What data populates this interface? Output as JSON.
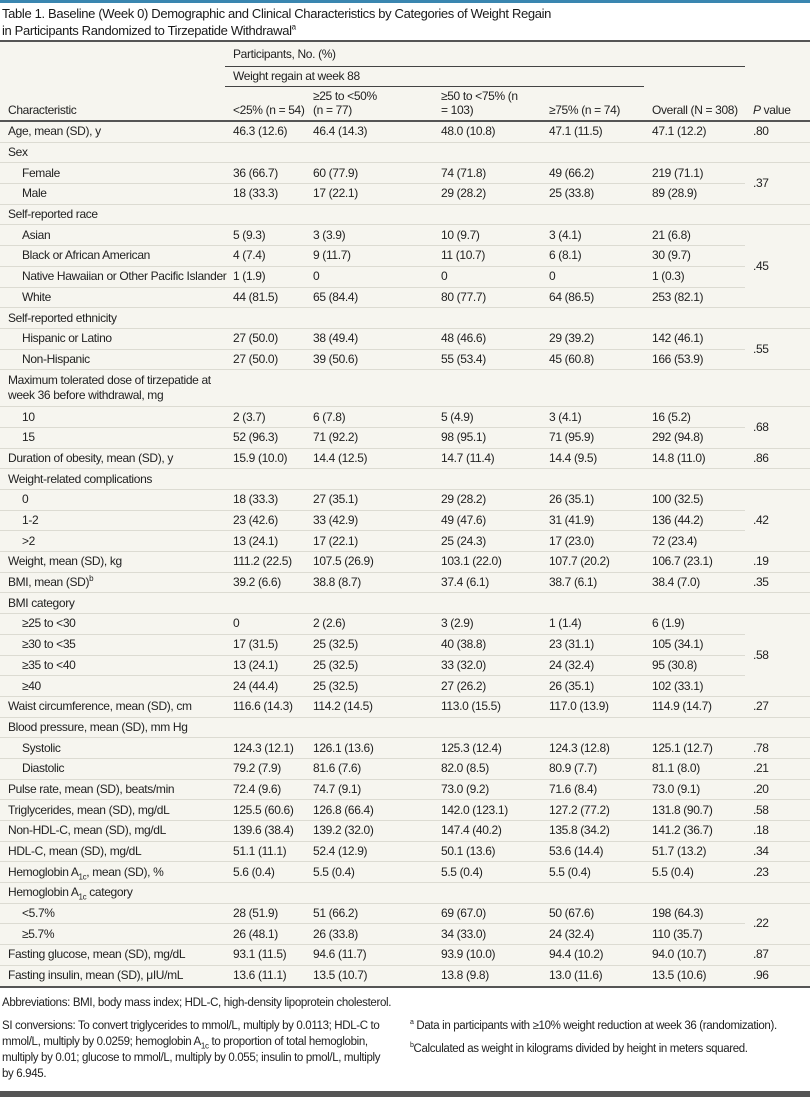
{
  "title": {
    "line1": "Table 1. Baseline (Week 0) Demographic and Clinical Characteristics by Categories of Weight Regain",
    "line2": "in Participants Randomized to Tirzepatide Withdrawal",
    "sup": "a"
  },
  "header": {
    "participants": "Participants, No. (%)",
    "regain": "Weight regain at week 88",
    "columns": [
      "Characteristic",
      "<25% (n = 54)",
      "≥25 to <50% (n = 77)",
      "≥50 to <75% (n = 103)",
      "≥75% (n = 74)",
      "Overall (N = 308)",
      "P value"
    ]
  },
  "rows": [
    {
      "label": "Age, mean (SD), y",
      "values": [
        "46.3 (12.6)",
        "46.4 (14.3)",
        "48.0 (10.8)",
        "47.1 (11.5)",
        "47.1 (12.2)"
      ],
      "p": ".80",
      "span": 1
    },
    {
      "label": "Sex",
      "section": true
    },
    {
      "label": "Female",
      "indent": true,
      "values": [
        "36 (66.7)",
        "60 (77.9)",
        "74 (71.8)",
        "49 (66.2)",
        "219 (71.1)"
      ],
      "p": ".37",
      "span": 2
    },
    {
      "label": "Male",
      "indent": true,
      "values": [
        "18 (33.3)",
        "17 (22.1)",
        "29 (28.2)",
        "25 (33.8)",
        "89 (28.9)"
      ]
    },
    {
      "label": "Self-reported race",
      "section": true
    },
    {
      "label": "Asian",
      "indent": true,
      "values": [
        "5 (9.3)",
        "3 (3.9)",
        "10 (9.7)",
        "3 (4.1)",
        "21 (6.8)"
      ],
      "p": ".45",
      "span": 4
    },
    {
      "label": "Black or African American",
      "indent": true,
      "values": [
        "4 (7.4)",
        "9 (11.7)",
        "11 (10.7)",
        "6 (8.1)",
        "30 (9.7)"
      ]
    },
    {
      "label": "Native Hawaiian or Other Pacific Islander",
      "indent": true,
      "values": [
        "1 (1.9)",
        "0",
        "0",
        "0",
        "1 (0.3)"
      ]
    },
    {
      "label": "White",
      "indent": true,
      "values": [
        "44 (81.5)",
        "65 (84.4)",
        "80 (77.7)",
        "64 (86.5)",
        "253 (82.1)"
      ]
    },
    {
      "label": "Self-reported ethnicity",
      "section": true
    },
    {
      "label": "Hispanic or Latino",
      "indent": true,
      "values": [
        "27 (50.0)",
        "38 (49.4)",
        "48 (46.6)",
        "29 (39.2)",
        "142 (46.1)"
      ],
      "p": ".55",
      "span": 2
    },
    {
      "label": "Non-Hispanic",
      "indent": true,
      "values": [
        "27 (50.0)",
        "39 (50.6)",
        "55 (53.4)",
        "45 (60.8)",
        "166 (53.9)"
      ]
    },
    {
      "label": "Maximum tolerated dose of tirzepatide at week 36 before withdrawal, mg",
      "section": true,
      "two": true
    },
    {
      "label": "10",
      "indent": true,
      "values": [
        "2 (3.7)",
        "6 (7.8)",
        "5 (4.9)",
        "3 (4.1)",
        "16 (5.2)"
      ],
      "p": ".68",
      "span": 2
    },
    {
      "label": "15",
      "indent": true,
      "values": [
        "52 (96.3)",
        "71 (92.2)",
        "98 (95.1)",
        "71 (95.9)",
        "292 (94.8)"
      ]
    },
    {
      "label": "Duration of obesity, mean (SD), y",
      "values": [
        "15.9 (10.0)",
        "14.4 (12.5)",
        "14.7 (11.4)",
        "14.4 (9.5)",
        "14.8 (11.0)"
      ],
      "p": ".86",
      "span": 1
    },
    {
      "label": "Weight-related complications",
      "section": true
    },
    {
      "label": "0",
      "indent": true,
      "values": [
        "18 (33.3)",
        "27 (35.1)",
        "29 (28.2)",
        "26 (35.1)",
        "100 (32.5)"
      ],
      "p": ".42",
      "span": 3
    },
    {
      "label": "1-2",
      "indent": true,
      "values": [
        "23 (42.6)",
        "33 (42.9)",
        "49 (47.6)",
        "31 (41.9)",
        "136 (44.2)"
      ]
    },
    {
      "label": ">2",
      "indent": true,
      "values": [
        "13 (24.1)",
        "17 (22.1)",
        "25 (24.3)",
        "17 (23.0)",
        "72 (23.4)"
      ]
    },
    {
      "label": "Weight, mean (SD), kg",
      "values": [
        "111.2 (22.5)",
        "107.5 (26.9)",
        "103.1 (22.0)",
        "107.7 (20.2)",
        "106.7 (23.1)"
      ],
      "p": ".19",
      "span": 1
    },
    {
      "label": "BMI, mean (SD)",
      "sup": "b",
      "values": [
        "39.2 (6.6)",
        "38.8 (8.7)",
        "37.4 (6.1)",
        "38.7 (6.1)",
        "38.4 (7.0)"
      ],
      "p": ".35",
      "span": 1
    },
    {
      "label": "BMI category",
      "section": true
    },
    {
      "label": "≥25 to <30",
      "indent": true,
      "values": [
        "0",
        "2 (2.6)",
        "3 (2.9)",
        "1 (1.4)",
        "6 (1.9)"
      ],
      "p": ".58",
      "span": 4
    },
    {
      "label": "≥30 to <35",
      "indent": true,
      "values": [
        "17 (31.5)",
        "25 (32.5)",
        "40 (38.8)",
        "23 (31.1)",
        "105 (34.1)"
      ]
    },
    {
      "label": "≥35 to <40",
      "indent": true,
      "values": [
        "13 (24.1)",
        "25 (32.5)",
        "33 (32.0)",
        "24 (32.4)",
        "95 (30.8)"
      ]
    },
    {
      "label": "≥40",
      "indent": true,
      "values": [
        "24 (44.4)",
        "25 (32.5)",
        "27 (26.2)",
        "26 (35.1)",
        "102 (33.1)"
      ]
    },
    {
      "label": "Waist circumference, mean (SD), cm",
      "values": [
        "116.6 (14.3)",
        "114.2 (14.5)",
        "113.0 (15.5)",
        "117.0 (13.9)",
        "114.9 (14.7)"
      ],
      "p": ".27",
      "span": 1
    },
    {
      "label": "Blood pressure, mean (SD), mm Hg",
      "section": true
    },
    {
      "label": "Systolic",
      "indent": true,
      "values": [
        "124.3 (12.1)",
        "126.1 (13.6)",
        "125.3 (12.4)",
        "124.3 (12.8)",
        "125.1 (12.7)"
      ],
      "p": ".78",
      "span": 1
    },
    {
      "label": "Diastolic",
      "indent": true,
      "values": [
        "79.2 (7.9)",
        "81.6 (7.6)",
        "82.0 (8.5)",
        "80.9 (7.7)",
        "81.1 (8.0)"
      ],
      "p": ".21",
      "span": 1
    },
    {
      "label": "Pulse rate, mean (SD), beats/min",
      "values": [
        "72.4 (9.6)",
        "74.7 (9.1)",
        "73.0 (9.2)",
        "71.6 (8.4)",
        "73.0 (9.1)"
      ],
      "p": ".20",
      "span": 1
    },
    {
      "label": "Triglycerides, mean (SD), mg/dL",
      "values": [
        "125.5 (60.6)",
        "126.8 (66.4)",
        "142.0 (123.1)",
        "127.2 (77.2)",
        "131.8 (90.7)"
      ],
      "p": ".58",
      "span": 1
    },
    {
      "label": "Non-HDL-C, mean (SD), mg/dL",
      "values": [
        "139.6 (38.4)",
        "139.2 (32.0)",
        "147.4 (40.2)",
        "135.8 (34.2)",
        "141.2 (36.7)"
      ],
      "p": ".18",
      "span": 1
    },
    {
      "label": "HDL-C, mean (SD), mg/dL",
      "values": [
        "51.1 (11.1)",
        "52.4 (12.9)",
        "50.1 (13.6)",
        "53.6 (14.4)",
        "51.7 (13.2)"
      ],
      "p": ".34",
      "span": 1
    },
    {
      "label": "Hemoglobin A",
      "sub": "1c",
      "after": ", mean (SD), %",
      "values": [
        "5.6 (0.4)",
        "5.5 (0.4)",
        "5.5 (0.4)",
        "5.5 (0.4)",
        "5.5 (0.4)"
      ],
      "p": ".23",
      "span": 1
    },
    {
      "label": "Hemoglobin A",
      "sub": "1c",
      "after": " category",
      "section": true
    },
    {
      "label": "<5.7%",
      "indent": true,
      "values": [
        "28 (51.9)",
        "51 (66.2)",
        "69 (67.0)",
        "50 (67.6)",
        "198 (64.3)"
      ],
      "p": ".22",
      "span": 2
    },
    {
      "label": "≥5.7%",
      "indent": true,
      "values": [
        "26 (48.1)",
        "26 (33.8)",
        "34 (33.0)",
        "24 (32.4)",
        "110 (35.7)"
      ]
    },
    {
      "label": "Fasting glucose, mean (SD), mg/dL",
      "values": [
        "93.1 (11.5)",
        "94.6 (11.7)",
        "93.9 (10.0)",
        "94.4 (10.2)",
        "94.0 (10.7)"
      ],
      "p": ".87",
      "span": 1
    },
    {
      "label": "Fasting insulin, mean (SD), μIU/mL",
      "values": [
        "13.6 (11.1)",
        "13.5 (10.7)",
        "13.8 (9.8)",
        "13.0 (11.6)",
        "13.5 (10.6)"
      ],
      "p": ".96",
      "span": 1
    }
  ],
  "footnotes": {
    "abbreviations": "Abbreviations: BMI, body mass index; HDL-C, high-density lipoprotein cholesterol.",
    "si_a": "SI conversions: To convert triglycerides to mmol/L, multiply by 0.0113; HDL-C to mmol/L, multiply by 0.0259; hemoglobin A",
    "si_sub": "1c",
    "si_b": " to proportion of total hemoglobin, multiply by 0.01; glucose to mmol/L, multiply by 0.055; insulin to pmol/L, multiply by 6.945.",
    "a_mark": "a",
    "a_text": " Data in participants with ≥10% weight reduction at week 36 (randomization).",
    "b_mark": "b",
    "b_text": "Calculated as weight in kilograms divided by height in meters squared."
  },
  "colors": {
    "accent": "#3a86b0",
    "table_bg": "#f6f5ef",
    "rule": "#555555"
  }
}
